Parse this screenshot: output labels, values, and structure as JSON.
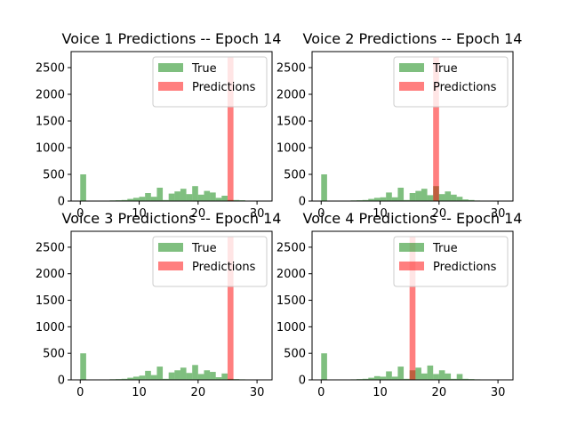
{
  "figure": {
    "background": "#ffffff"
  },
  "colors": {
    "true": "#008000",
    "predictions": "#ff0000",
    "alpha": 0.5
  },
  "chart_data": [
    {
      "type": "bar",
      "title": "Voice 1 Predictions -- Epoch 14",
      "xlabel": "",
      "ylabel": "",
      "xlim": [
        -1.55,
        32.55
      ],
      "ylim": [
        0,
        2800
      ],
      "xticks": [
        0,
        10,
        20,
        30
      ],
      "yticks": [
        0,
        500,
        1000,
        1500,
        2000,
        2500
      ],
      "bin_width": 1,
      "legend": {
        "position": "upper right",
        "entries": [
          "True",
          "Predictions"
        ]
      },
      "series": [
        {
          "name": "True",
          "color": "#008000",
          "bins": [
            [
              0,
              500
            ],
            [
              4,
              5
            ],
            [
              5,
              12
            ],
            [
              6,
              15
            ],
            [
              7,
              20
            ],
            [
              8,
              40
            ],
            [
              9,
              60
            ],
            [
              10,
              80
            ],
            [
              11,
              150
            ],
            [
              12,
              80
            ],
            [
              13,
              250
            ],
            [
              14,
              20
            ],
            [
              15,
              140
            ],
            [
              16,
              180
            ],
            [
              17,
              230
            ],
            [
              18,
              130
            ],
            [
              19,
              280
            ],
            [
              20,
              120
            ],
            [
              21,
              190
            ],
            [
              22,
              160
            ],
            [
              23,
              60
            ],
            [
              24,
              100
            ],
            [
              25,
              20
            ],
            [
              26,
              20
            ],
            [
              27,
              15
            ],
            [
              28,
              5
            ]
          ]
        },
        {
          "name": "Predictions",
          "color": "#ff0000",
          "bins": [
            [
              25,
              2690
            ]
          ]
        }
      ]
    },
    {
      "type": "bar",
      "title": "Voice 2 Predictions -- Epoch 14",
      "xlabel": "",
      "ylabel": "",
      "xlim": [
        -1.55,
        32.55
      ],
      "ylim": [
        0,
        2800
      ],
      "xticks": [
        0,
        10,
        20,
        30
      ],
      "yticks": [
        0,
        500,
        1000,
        1500,
        2000,
        2500
      ],
      "bin_width": 1,
      "legend": {
        "position": "upper right",
        "entries": [
          "True",
          "Predictions"
        ]
      },
      "series": [
        {
          "name": "True",
          "color": "#008000",
          "bins": [
            [
              0,
              500
            ],
            [
              4,
              5
            ],
            [
              5,
              12
            ],
            [
              6,
              15
            ],
            [
              7,
              20
            ],
            [
              8,
              40
            ],
            [
              9,
              60
            ],
            [
              10,
              70
            ],
            [
              11,
              160
            ],
            [
              12,
              70
            ],
            [
              13,
              250
            ],
            [
              14,
              20
            ],
            [
              15,
              150
            ],
            [
              16,
              190
            ],
            [
              17,
              230
            ],
            [
              18,
              110
            ],
            [
              19,
              280
            ],
            [
              20,
              130
            ],
            [
              21,
              180
            ],
            [
              22,
              120
            ],
            [
              23,
              80
            ],
            [
              24,
              30
            ],
            [
              25,
              20
            ],
            [
              26,
              10
            ],
            [
              27,
              5
            ]
          ]
        },
        {
          "name": "Predictions",
          "color": "#ff0000",
          "bins": [
            [
              19,
              2690
            ]
          ]
        }
      ]
    },
    {
      "type": "bar",
      "title": "Voice 3 Predictions -- Epoch 14",
      "xlabel": "",
      "ylabel": "",
      "xlim": [
        -1.55,
        32.55
      ],
      "ylim": [
        0,
        2800
      ],
      "xticks": [
        0,
        10,
        20,
        30
      ],
      "yticks": [
        0,
        500,
        1000,
        1500,
        2000,
        2500
      ],
      "bin_width": 1,
      "legend": {
        "position": "upper right",
        "entries": [
          "True",
          "Predictions"
        ]
      },
      "series": [
        {
          "name": "True",
          "color": "#008000",
          "bins": [
            [
              0,
              500
            ],
            [
              4,
              5
            ],
            [
              5,
              12
            ],
            [
              6,
              15
            ],
            [
              7,
              20
            ],
            [
              8,
              40
            ],
            [
              9,
              60
            ],
            [
              10,
              80
            ],
            [
              11,
              170
            ],
            [
              12,
              90
            ],
            [
              13,
              250
            ],
            [
              14,
              20
            ],
            [
              15,
              140
            ],
            [
              16,
              180
            ],
            [
              17,
              230
            ],
            [
              18,
              130
            ],
            [
              19,
              280
            ],
            [
              20,
              110
            ],
            [
              21,
              180
            ],
            [
              22,
              150
            ],
            [
              23,
              50
            ],
            [
              24,
              120
            ],
            [
              25,
              20
            ],
            [
              26,
              15
            ],
            [
              27,
              10
            ]
          ]
        },
        {
          "name": "Predictions",
          "color": "#ff0000",
          "bins": [
            [
              25,
              2690
            ]
          ]
        }
      ]
    },
    {
      "type": "bar",
      "title": "Voice 4 Predictions -- Epoch 14",
      "xlabel": "",
      "ylabel": "",
      "xlim": [
        -1.55,
        32.55
      ],
      "ylim": [
        0,
        2800
      ],
      "xticks": [
        0,
        10,
        20,
        30
      ],
      "yticks": [
        0,
        500,
        1000,
        1500,
        2000,
        2500
      ],
      "bin_width": 1,
      "legend": {
        "position": "upper right",
        "entries": [
          "True",
          "Predictions"
        ]
      },
      "series": [
        {
          "name": "True",
          "color": "#008000",
          "bins": [
            [
              0,
              500
            ],
            [
              4,
              5
            ],
            [
              5,
              10
            ],
            [
              6,
              15
            ],
            [
              7,
              20
            ],
            [
              8,
              40
            ],
            [
              9,
              70
            ],
            [
              10,
              60
            ],
            [
              11,
              160
            ],
            [
              12,
              60
            ],
            [
              13,
              250
            ],
            [
              14,
              20
            ],
            [
              15,
              180
            ],
            [
              16,
              230
            ],
            [
              17,
              120
            ],
            [
              18,
              270
            ],
            [
              19,
              110
            ],
            [
              20,
              180
            ],
            [
              21,
              120
            ],
            [
              22,
              20
            ],
            [
              23,
              110
            ],
            [
              24,
              20
            ],
            [
              25,
              15
            ],
            [
              26,
              10
            ]
          ]
        },
        {
          "name": "Predictions",
          "color": "#ff0000",
          "bins": [
            [
              15,
              2690
            ]
          ]
        }
      ]
    }
  ]
}
